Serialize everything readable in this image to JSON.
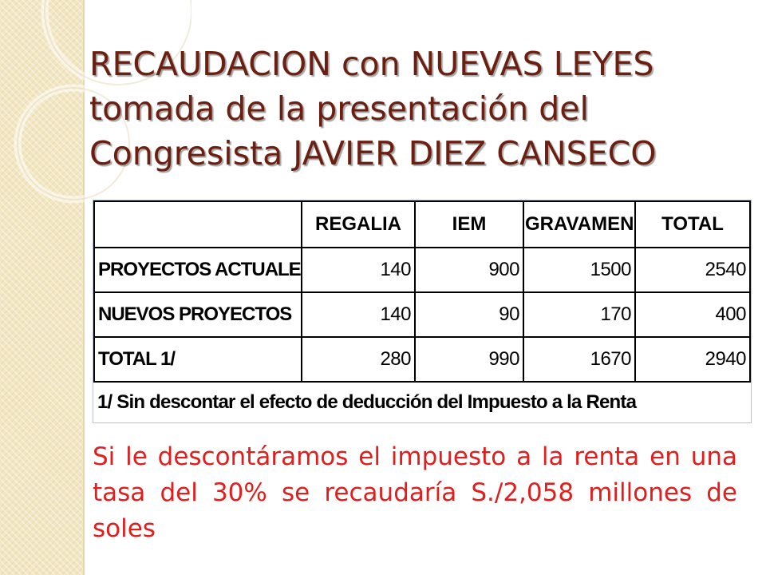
{
  "slide": {
    "title_lines": [
      "RECAUDACION con NUEVAS LEYES",
      "tomada de la presentación del",
      "Congresista JAVIER DIEZ CANSECO"
    ],
    "table": {
      "headers": [
        "",
        "REGALIA",
        "IEM",
        "GRAVAMEN",
        "TOTAL"
      ],
      "rows": [
        {
          "label": "PROYECTOS ACTUALES",
          "values": [
            "140",
            "900",
            "1500",
            "2540"
          ]
        },
        {
          "label": "NUEVOS PROYECTOS",
          "values": [
            "140",
            "90",
            "170",
            "400"
          ]
        },
        {
          "label": "TOTAL 1/",
          "values": [
            "280",
            "990",
            "1670",
            "2940"
          ]
        }
      ],
      "footnote": "1/ Sin descontar el efecto de deducción del Impuesto a la Renta"
    },
    "note": "Si le descontáramos el impuesto a la renta en una tasa del 30% se recaudaría S./2,058 millones de soles"
  },
  "colors": {
    "title": "#6b1f10",
    "note": "#e11d1d",
    "side_band": "#f3e7c3"
  }
}
